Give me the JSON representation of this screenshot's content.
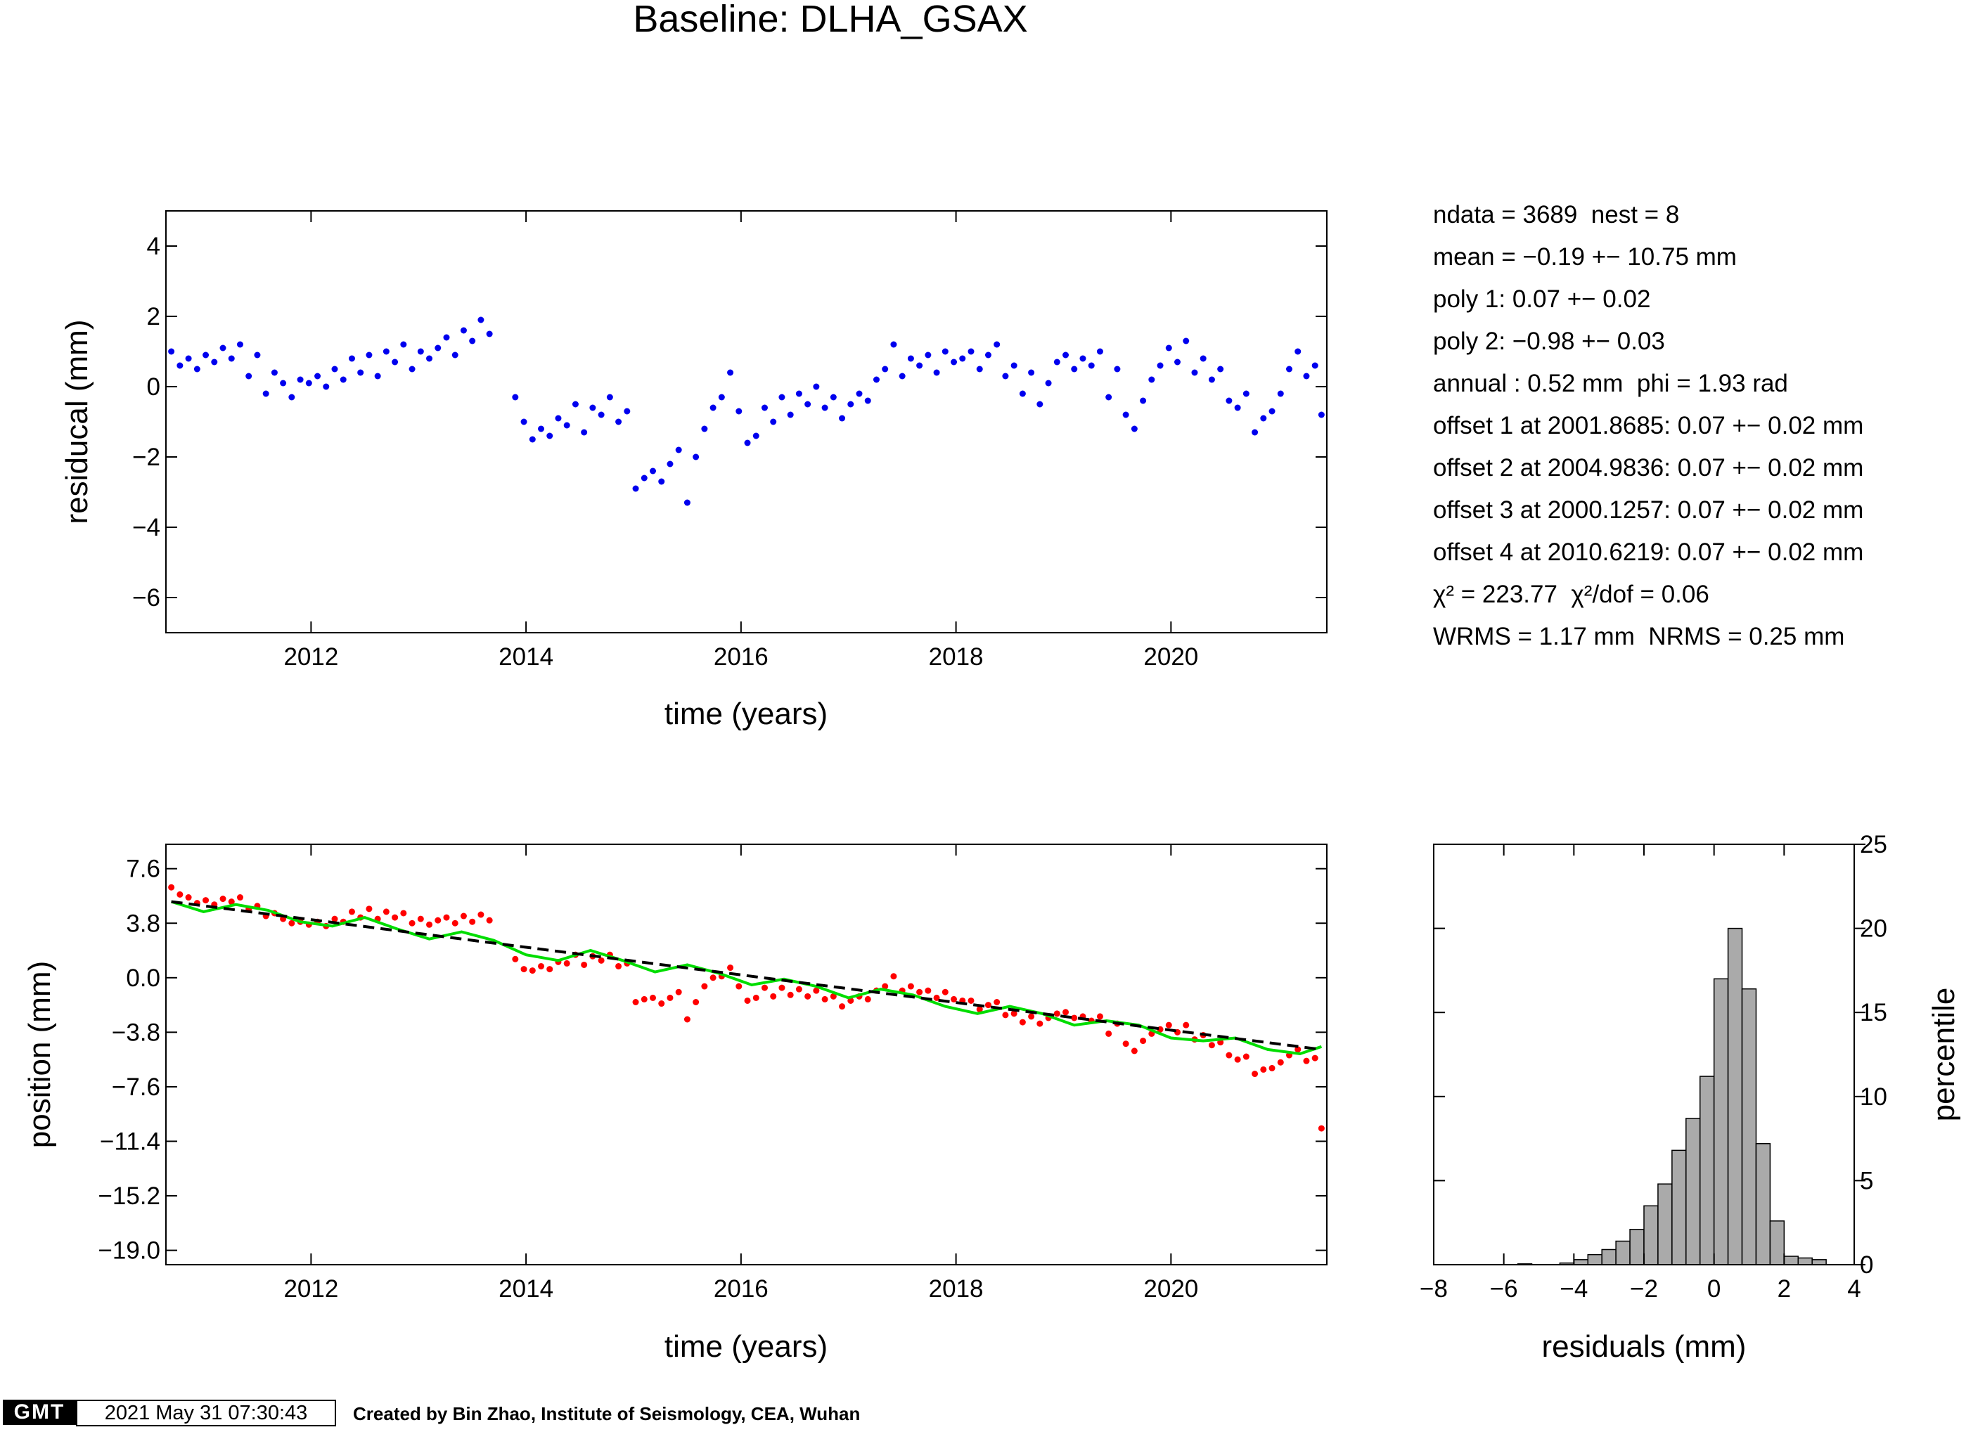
{
  "title": "Baseline: DLHA_GSAX",
  "stats": [
    "ndata = 3689  nest = 8",
    "mean = −0.19 +− 10.75 mm",
    "poly 1: 0.07 +− 0.02",
    "poly 2: −0.98 +− 0.03",
    "annual : 0.52 mm  phi = 1.93 rad",
    "offset 1 at 2001.8685: 0.07 +− 0.02 mm",
    "offset 2 at 2004.9836: 0.07 +− 0.02 mm",
    "offset 3 at 2000.1257: 0.07 +− 0.02 mm",
    "offset 4 at 2010.6219: 0.07 +− 0.02 mm",
    "χ² = 223.77  χ²/dof = 0.06",
    "WRMS = 1.17 mm  NRMS = 0.25 mm"
  ],
  "footer": {
    "logo": "GMT",
    "timestamp": "2021 May 31 07:30:43",
    "credit": "Created by Bin Zhao, Institute of Seismology, CEA, Wuhan"
  },
  "colors": {
    "residuals": "#0000ee",
    "position": "#ff0000",
    "annual_fit": "#00dd00",
    "trend": "#000000",
    "histogram": "#aaaaaa"
  },
  "chart_data": [
    {
      "id": "residuals",
      "type": "scatter",
      "xlabel": "time (years)",
      "ylabel": "residucal (mm)",
      "xlim": [
        2010.65,
        2021.45
      ],
      "ylim": [
        -7,
        5
      ],
      "xticks": [
        2012,
        2014,
        2016,
        2018,
        2020
      ],
      "yticks": [
        -6,
        -4,
        -2,
        0,
        2,
        4
      ],
      "grid": false,
      "series": [
        {
          "marker": "dot",
          "x": [
            2010.7,
            2010.78,
            2010.86,
            2010.94,
            2011.02,
            2011.1,
            2011.18,
            2011.26,
            2011.34,
            2011.42,
            2011.5,
            2011.58,
            2011.66,
            2011.74,
            2011.82,
            2011.9,
            2011.98,
            2012.06,
            2012.14,
            2012.22,
            2012.3,
            2012.38,
            2012.46,
            2012.54,
            2012.62,
            2012.7,
            2012.78,
            2012.86,
            2012.94,
            2013.02,
            2013.1,
            2013.18,
            2013.26,
            2013.34,
            2013.42,
            2013.5,
            2013.58,
            2013.66,
            2013.9,
            2013.98,
            2014.06,
            2014.14,
            2014.22,
            2014.3,
            2014.38,
            2014.46,
            2014.54,
            2014.62,
            2014.7,
            2014.78,
            2014.86,
            2014.94,
            2015.02,
            2015.1,
            2015.18,
            2015.26,
            2015.34,
            2015.42,
            2015.5,
            2015.58,
            2015.66,
            2015.74,
            2015.82,
            2015.9,
            2015.98,
            2016.06,
            2016.14,
            2016.22,
            2016.3,
            2016.38,
            2016.46,
            2016.54,
            2016.62,
            2016.7,
            2016.78,
            2016.86,
            2016.94,
            2017.02,
            2017.1,
            2017.18,
            2017.26,
            2017.34,
            2017.42,
            2017.5,
            2017.58,
            2017.66,
            2017.74,
            2017.82,
            2017.9,
            2017.98,
            2018.06,
            2018.14,
            2018.22,
            2018.3,
            2018.38,
            2018.46,
            2018.54,
            2018.62,
            2018.7,
            2018.78,
            2018.86,
            2018.94,
            2019.02,
            2019.1,
            2019.18,
            2019.26,
            2019.34,
            2019.42,
            2019.5,
            2019.58,
            2019.66,
            2019.74,
            2019.82,
            2019.9,
            2019.98,
            2020.06,
            2020.14,
            2020.22,
            2020.3,
            2020.38,
            2020.46,
            2020.54,
            2020.62,
            2020.7,
            2020.78,
            2020.86,
            2020.94,
            2021.02,
            2021.1,
            2021.18,
            2021.26,
            2021.34,
            2021.4
          ],
          "y": [
            1.0,
            0.6,
            0.8,
            0.5,
            0.9,
            0.7,
            1.1,
            0.8,
            1.2,
            0.3,
            0.9,
            -0.2,
            0.4,
            0.1,
            -0.3,
            0.2,
            0.1,
            0.3,
            0.0,
            0.5,
            0.2,
            0.8,
            0.4,
            0.9,
            0.3,
            1.0,
            0.7,
            1.2,
            0.5,
            1.0,
            0.8,
            1.1,
            1.4,
            0.9,
            1.6,
            1.3,
            1.9,
            1.5,
            -0.3,
            -1.0,
            -1.5,
            -1.2,
            -1.4,
            -0.9,
            -1.1,
            -0.5,
            -1.3,
            -0.6,
            -0.8,
            -0.3,
            -1.0,
            -0.7,
            -2.9,
            -2.6,
            -2.4,
            -2.7,
            -2.2,
            -1.8,
            -3.3,
            -2.0,
            -1.2,
            -0.6,
            -0.3,
            0.4,
            -0.7,
            -1.6,
            -1.4,
            -0.6,
            -1.0,
            -0.3,
            -0.8,
            -0.2,
            -0.5,
            0.0,
            -0.6,
            -0.3,
            -0.9,
            -0.5,
            -0.2,
            -0.4,
            0.2,
            0.5,
            1.2,
            0.3,
            0.8,
            0.6,
            0.9,
            0.4,
            1.0,
            0.7,
            0.8,
            1.0,
            0.5,
            0.9,
            1.2,
            0.3,
            0.6,
            -0.2,
            0.4,
            -0.5,
            0.1,
            0.7,
            0.9,
            0.5,
            0.8,
            0.6,
            1.0,
            -0.3,
            0.5,
            -0.8,
            -1.2,
            -0.4,
            0.2,
            0.6,
            1.1,
            0.7,
            1.3,
            0.4,
            0.8,
            0.2,
            0.5,
            -0.4,
            -0.6,
            -0.2,
            -1.3,
            -0.9,
            -0.7,
            -0.2,
            0.5,
            1.0,
            0.3,
            0.6,
            -0.8
          ]
        }
      ]
    },
    {
      "id": "position",
      "type": "scatter",
      "xlabel": "time (years)",
      "ylabel": "position (mm)",
      "xlim": [
        2010.65,
        2021.45
      ],
      "ylim": [
        -20.0,
        9.3
      ],
      "xticks": [
        2012,
        2014,
        2016,
        2018,
        2020
      ],
      "yticks": [
        7.6,
        3.8,
        0.0,
        -3.8,
        -7.6,
        -11.4,
        -15.2,
        -19.0
      ],
      "ytick_labels": [
        "7.6",
        "3.8",
        "0.0",
        "−3.8",
        "−7.6",
        "−11.4",
        "−15.2",
        "−19.0"
      ],
      "grid": false,
      "series": [
        {
          "name": "observations",
          "marker": "dot",
          "x": [
            2010.7,
            2010.78,
            2010.86,
            2010.94,
            2011.02,
            2011.1,
            2011.18,
            2011.26,
            2011.34,
            2011.42,
            2011.5,
            2011.58,
            2011.66,
            2011.74,
            2011.82,
            2011.9,
            2011.98,
            2012.06,
            2012.14,
            2012.22,
            2012.3,
            2012.38,
            2012.46,
            2012.54,
            2012.62,
            2012.7,
            2012.78,
            2012.86,
            2012.94,
            2013.02,
            2013.1,
            2013.18,
            2013.26,
            2013.34,
            2013.42,
            2013.5,
            2013.58,
            2013.66,
            2013.9,
            2013.98,
            2014.06,
            2014.14,
            2014.22,
            2014.3,
            2014.38,
            2014.46,
            2014.54,
            2014.62,
            2014.7,
            2014.78,
            2014.86,
            2014.94,
            2015.02,
            2015.1,
            2015.18,
            2015.26,
            2015.34,
            2015.42,
            2015.5,
            2015.58,
            2015.66,
            2015.74,
            2015.82,
            2015.9,
            2015.98,
            2016.06,
            2016.14,
            2016.22,
            2016.3,
            2016.38,
            2016.46,
            2016.54,
            2016.62,
            2016.7,
            2016.78,
            2016.86,
            2016.94,
            2017.02,
            2017.1,
            2017.18,
            2017.26,
            2017.34,
            2017.42,
            2017.5,
            2017.58,
            2017.66,
            2017.74,
            2017.82,
            2017.9,
            2017.98,
            2018.06,
            2018.14,
            2018.22,
            2018.3,
            2018.38,
            2018.46,
            2018.54,
            2018.62,
            2018.7,
            2018.78,
            2018.86,
            2018.94,
            2019.02,
            2019.1,
            2019.18,
            2019.26,
            2019.34,
            2019.42,
            2019.5,
            2019.58,
            2019.66,
            2019.74,
            2019.82,
            2019.9,
            2019.98,
            2020.06,
            2020.14,
            2020.22,
            2020.3,
            2020.38,
            2020.46,
            2020.54,
            2020.62,
            2020.7,
            2020.78,
            2020.86,
            2020.94,
            2021.02,
            2021.1,
            2021.18,
            2021.26,
            2021.34,
            2021.4
          ],
          "y": [
            6.3,
            5.8,
            5.6,
            5.2,
            5.4,
            5.1,
            5.5,
            5.3,
            5.6,
            4.8,
            5.0,
            4.3,
            4.5,
            4.1,
            3.8,
            3.9,
            3.7,
            3.9,
            3.6,
            4.1,
            3.9,
            4.6,
            4.2,
            4.8,
            4.1,
            4.6,
            4.2,
            4.5,
            3.8,
            4.1,
            3.7,
            4.0,
            4.2,
            3.8,
            4.3,
            3.9,
            4.4,
            4.0,
            1.3,
            0.6,
            0.5,
            0.8,
            0.6,
            1.1,
            1.0,
            1.6,
            0.9,
            1.5,
            1.2,
            1.6,
            0.8,
            1.0,
            -1.7,
            -1.5,
            -1.4,
            -1.8,
            -1.4,
            -1.0,
            -2.9,
            -1.7,
            -0.6,
            0.0,
            0.1,
            0.7,
            -0.6,
            -1.6,
            -1.4,
            -0.7,
            -1.3,
            -0.7,
            -1.2,
            -0.8,
            -1.3,
            -0.9,
            -1.5,
            -1.3,
            -2.0,
            -1.6,
            -1.3,
            -1.5,
            -0.9,
            -0.6,
            0.1,
            -0.9,
            -0.6,
            -1.0,
            -0.9,
            -1.4,
            -1.0,
            -1.5,
            -1.6,
            -1.6,
            -2.2,
            -1.9,
            -1.7,
            -2.6,
            -2.5,
            -3.1,
            -2.7,
            -3.2,
            -2.8,
            -2.5,
            -2.4,
            -2.8,
            -2.7,
            -3.0,
            -2.7,
            -3.9,
            -3.2,
            -4.6,
            -5.1,
            -4.4,
            -3.9,
            -3.6,
            -3.3,
            -3.8,
            -3.3,
            -4.3,
            -4.0,
            -4.7,
            -4.5,
            -5.4,
            -5.7,
            -5.5,
            -6.7,
            -6.4,
            -6.3,
            -5.9,
            -5.4,
            -5.0,
            -5.8,
            -5.6,
            -10.5
          ]
        },
        {
          "name": "annual fit",
          "marker": "line",
          "x": [
            2010.7,
            2011.0,
            2011.3,
            2011.6,
            2011.9,
            2012.2,
            2012.5,
            2012.8,
            2013.1,
            2013.4,
            2013.7,
            2014.0,
            2014.3,
            2014.6,
            2014.9,
            2015.2,
            2015.5,
            2015.8,
            2016.1,
            2016.4,
            2016.7,
            2017.0,
            2017.3,
            2017.6,
            2017.9,
            2018.2,
            2018.5,
            2018.8,
            2019.1,
            2019.4,
            2019.7,
            2020.0,
            2020.3,
            2020.6,
            2020.9,
            2021.2,
            2021.4
          ],
          "y": [
            5.3,
            4.6,
            5.1,
            4.7,
            3.9,
            3.6,
            4.2,
            3.4,
            2.7,
            3.2,
            2.6,
            1.6,
            1.2,
            1.9,
            1.2,
            0.4,
            0.9,
            0.3,
            -0.5,
            -0.1,
            -0.6,
            -1.4,
            -0.8,
            -1.2,
            -2.0,
            -2.5,
            -2.0,
            -2.5,
            -3.3,
            -3.0,
            -3.3,
            -4.2,
            -4.4,
            -4.2,
            -5.0,
            -5.3,
            -4.8
          ]
        },
        {
          "name": "trend",
          "marker": "dashed",
          "x": [
            2010.7,
            2021.4
          ],
          "y": [
            5.3,
            -5.0
          ]
        }
      ]
    },
    {
      "id": "histogram",
      "type": "bar",
      "xlabel": "residuals (mm)",
      "ylabel": "percentile",
      "xlim": [
        -8,
        4
      ],
      "ylim": [
        0,
        25
      ],
      "xticks": [
        -8,
        -6,
        -4,
        -2,
        0,
        2,
        4
      ],
      "xtick_labels": [
        "−8",
        "−6",
        "−4",
        "−2",
        "0",
        "2",
        "4"
      ],
      "yticks": [
        0,
        5,
        10,
        15,
        20,
        25
      ],
      "bin_width": 0.4,
      "bin_starts": [
        -5.6,
        -4.4,
        -4.0,
        -3.6,
        -3.2,
        -2.8,
        -2.4,
        -2.0,
        -1.6,
        -1.2,
        -0.8,
        -0.4,
        0.0,
        0.4,
        0.8,
        1.2,
        1.6,
        2.0,
        2.4,
        2.8
      ],
      "values": [
        0.05,
        0.1,
        0.3,
        0.6,
        0.9,
        1.4,
        2.1,
        3.5,
        4.8,
        6.8,
        8.7,
        11.2,
        17.0,
        20.0,
        16.4,
        7.2,
        2.6,
        0.5,
        0.4,
        0.3
      ]
    }
  ]
}
